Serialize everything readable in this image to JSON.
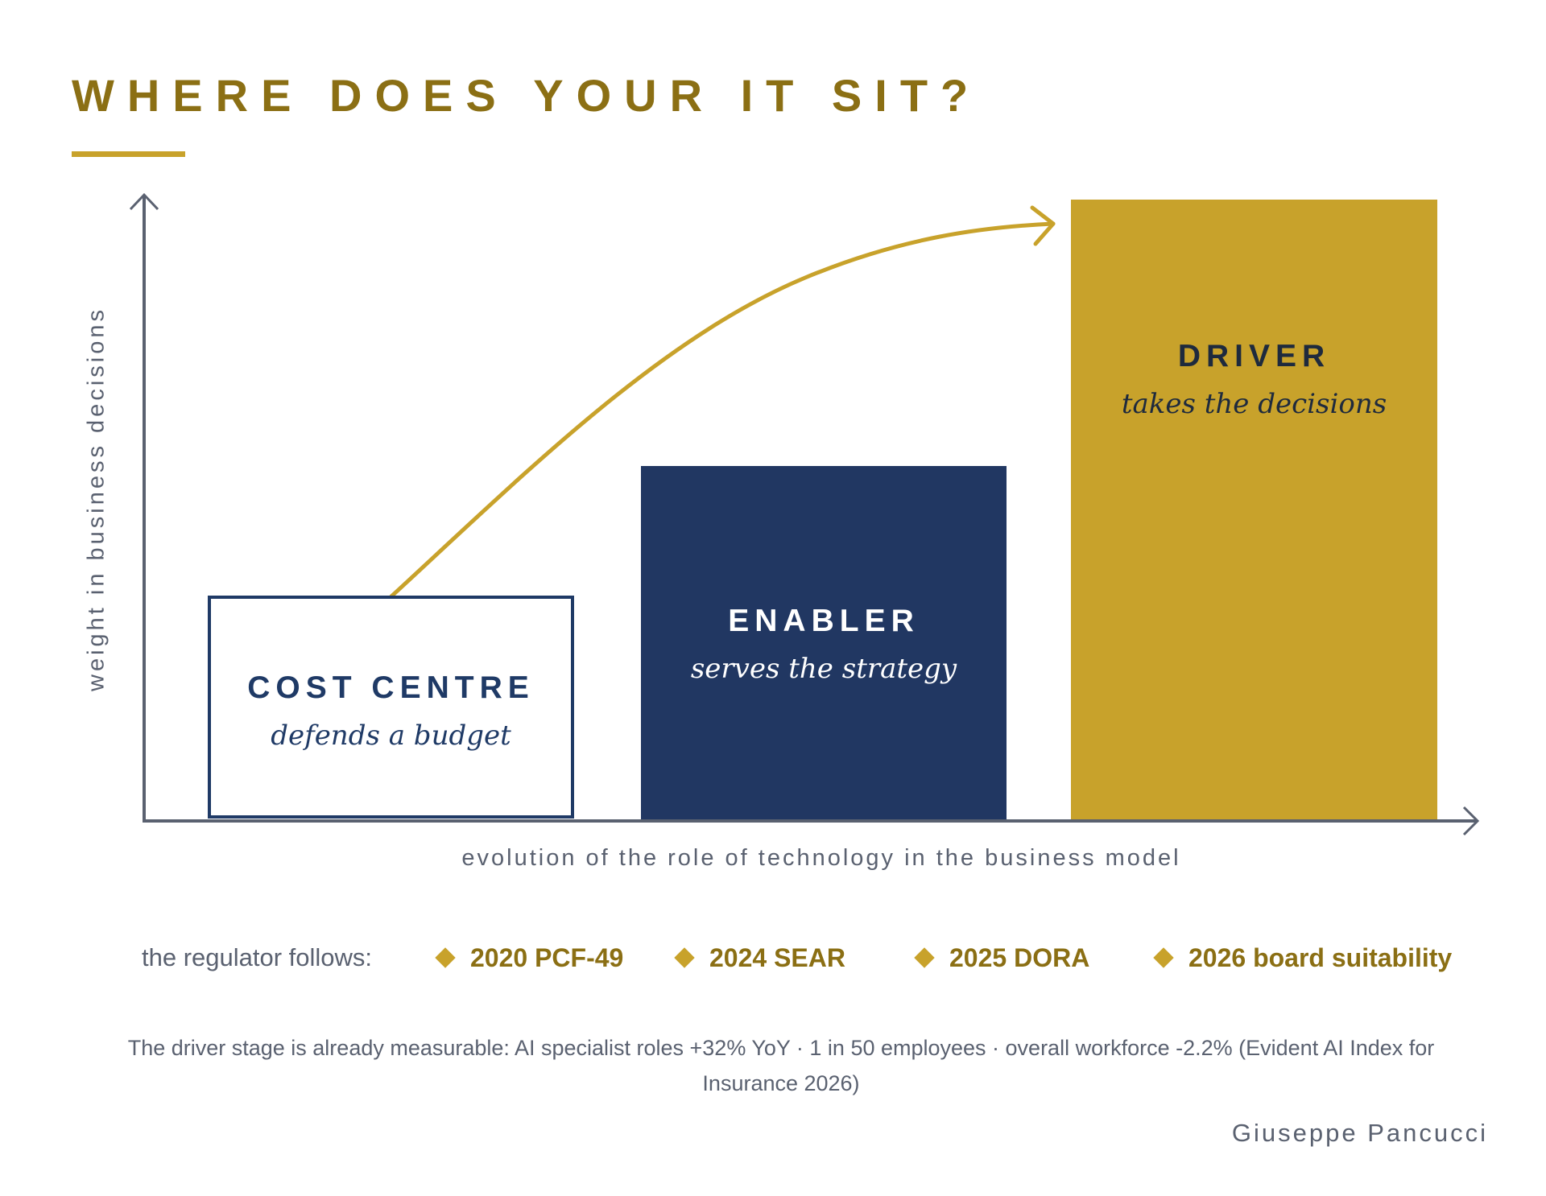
{
  "title": "WHERE DOES YOUR IT SIT?",
  "axes": {
    "y_label": "weight in business decisions",
    "x_label": "evolution of the role of technology in the business model"
  },
  "stages": [
    {
      "name": "COST CENTRE",
      "description": "defends a budget",
      "level": 0.36
    },
    {
      "name": "ENABLER",
      "description": "serves the strategy",
      "level": 0.62
    },
    {
      "name": "DRIVER",
      "description": "takes the decisions",
      "level": 1.0
    }
  ],
  "regulator": {
    "label": "the regulator follows:",
    "items": [
      "2020 PCF-49",
      "2024 SEAR",
      "2025 DORA",
      "2026 board suitability"
    ]
  },
  "footnote": "The driver stage is already measurable: AI specialist roles +32% YoY · 1 in 50 employees · overall workforce -2.2% (Evident AI Index for Insurance 2026)",
  "author": "Giuseppe Pancucci",
  "colors": {
    "gold": "#c8a22b",
    "dark_gold": "#8b6f14",
    "navy": "#213762",
    "axis_gray": "#5a6170"
  }
}
